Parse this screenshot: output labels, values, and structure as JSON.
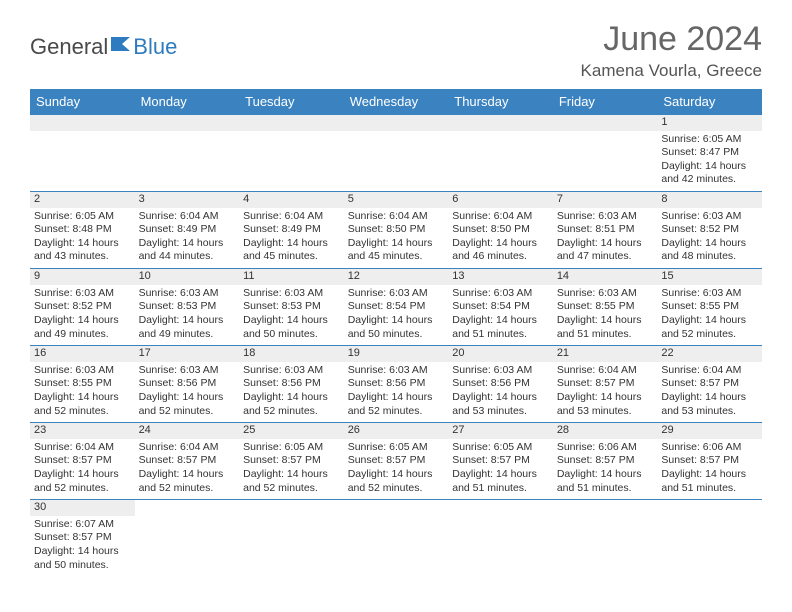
{
  "brand": {
    "part1": "General",
    "part2": "Blue"
  },
  "title": "June 2024",
  "location": "Kamena Vourla, Greece",
  "colors": {
    "header_bg": "#3b83c0",
    "header_text": "#ffffff",
    "daynum_bg": "#eeeeee",
    "border": "#3b83c0"
  },
  "weekdays": [
    "Sunday",
    "Monday",
    "Tuesday",
    "Wednesday",
    "Thursday",
    "Friday",
    "Saturday"
  ],
  "weeks": [
    [
      null,
      null,
      null,
      null,
      null,
      null,
      {
        "n": "1",
        "sr": "Sunrise: 6:05 AM",
        "ss": "Sunset: 8:47 PM",
        "d1": "Daylight: 14 hours",
        "d2": "and 42 minutes."
      }
    ],
    [
      {
        "n": "2",
        "sr": "Sunrise: 6:05 AM",
        "ss": "Sunset: 8:48 PM",
        "d1": "Daylight: 14 hours",
        "d2": "and 43 minutes."
      },
      {
        "n": "3",
        "sr": "Sunrise: 6:04 AM",
        "ss": "Sunset: 8:49 PM",
        "d1": "Daylight: 14 hours",
        "d2": "and 44 minutes."
      },
      {
        "n": "4",
        "sr": "Sunrise: 6:04 AM",
        "ss": "Sunset: 8:49 PM",
        "d1": "Daylight: 14 hours",
        "d2": "and 45 minutes."
      },
      {
        "n": "5",
        "sr": "Sunrise: 6:04 AM",
        "ss": "Sunset: 8:50 PM",
        "d1": "Daylight: 14 hours",
        "d2": "and 45 minutes."
      },
      {
        "n": "6",
        "sr": "Sunrise: 6:04 AM",
        "ss": "Sunset: 8:50 PM",
        "d1": "Daylight: 14 hours",
        "d2": "and 46 minutes."
      },
      {
        "n": "7",
        "sr": "Sunrise: 6:03 AM",
        "ss": "Sunset: 8:51 PM",
        "d1": "Daylight: 14 hours",
        "d2": "and 47 minutes."
      },
      {
        "n": "8",
        "sr": "Sunrise: 6:03 AM",
        "ss": "Sunset: 8:52 PM",
        "d1": "Daylight: 14 hours",
        "d2": "and 48 minutes."
      }
    ],
    [
      {
        "n": "9",
        "sr": "Sunrise: 6:03 AM",
        "ss": "Sunset: 8:52 PM",
        "d1": "Daylight: 14 hours",
        "d2": "and 49 minutes."
      },
      {
        "n": "10",
        "sr": "Sunrise: 6:03 AM",
        "ss": "Sunset: 8:53 PM",
        "d1": "Daylight: 14 hours",
        "d2": "and 49 minutes."
      },
      {
        "n": "11",
        "sr": "Sunrise: 6:03 AM",
        "ss": "Sunset: 8:53 PM",
        "d1": "Daylight: 14 hours",
        "d2": "and 50 minutes."
      },
      {
        "n": "12",
        "sr": "Sunrise: 6:03 AM",
        "ss": "Sunset: 8:54 PM",
        "d1": "Daylight: 14 hours",
        "d2": "and 50 minutes."
      },
      {
        "n": "13",
        "sr": "Sunrise: 6:03 AM",
        "ss": "Sunset: 8:54 PM",
        "d1": "Daylight: 14 hours",
        "d2": "and 51 minutes."
      },
      {
        "n": "14",
        "sr": "Sunrise: 6:03 AM",
        "ss": "Sunset: 8:55 PM",
        "d1": "Daylight: 14 hours",
        "d2": "and 51 minutes."
      },
      {
        "n": "15",
        "sr": "Sunrise: 6:03 AM",
        "ss": "Sunset: 8:55 PM",
        "d1": "Daylight: 14 hours",
        "d2": "and 52 minutes."
      }
    ],
    [
      {
        "n": "16",
        "sr": "Sunrise: 6:03 AM",
        "ss": "Sunset: 8:55 PM",
        "d1": "Daylight: 14 hours",
        "d2": "and 52 minutes."
      },
      {
        "n": "17",
        "sr": "Sunrise: 6:03 AM",
        "ss": "Sunset: 8:56 PM",
        "d1": "Daylight: 14 hours",
        "d2": "and 52 minutes."
      },
      {
        "n": "18",
        "sr": "Sunrise: 6:03 AM",
        "ss": "Sunset: 8:56 PM",
        "d1": "Daylight: 14 hours",
        "d2": "and 52 minutes."
      },
      {
        "n": "19",
        "sr": "Sunrise: 6:03 AM",
        "ss": "Sunset: 8:56 PM",
        "d1": "Daylight: 14 hours",
        "d2": "and 52 minutes."
      },
      {
        "n": "20",
        "sr": "Sunrise: 6:03 AM",
        "ss": "Sunset: 8:56 PM",
        "d1": "Daylight: 14 hours",
        "d2": "and 53 minutes."
      },
      {
        "n": "21",
        "sr": "Sunrise: 6:04 AM",
        "ss": "Sunset: 8:57 PM",
        "d1": "Daylight: 14 hours",
        "d2": "and 53 minutes."
      },
      {
        "n": "22",
        "sr": "Sunrise: 6:04 AM",
        "ss": "Sunset: 8:57 PM",
        "d1": "Daylight: 14 hours",
        "d2": "and 53 minutes."
      }
    ],
    [
      {
        "n": "23",
        "sr": "Sunrise: 6:04 AM",
        "ss": "Sunset: 8:57 PM",
        "d1": "Daylight: 14 hours",
        "d2": "and 52 minutes."
      },
      {
        "n": "24",
        "sr": "Sunrise: 6:04 AM",
        "ss": "Sunset: 8:57 PM",
        "d1": "Daylight: 14 hours",
        "d2": "and 52 minutes."
      },
      {
        "n": "25",
        "sr": "Sunrise: 6:05 AM",
        "ss": "Sunset: 8:57 PM",
        "d1": "Daylight: 14 hours",
        "d2": "and 52 minutes."
      },
      {
        "n": "26",
        "sr": "Sunrise: 6:05 AM",
        "ss": "Sunset: 8:57 PM",
        "d1": "Daylight: 14 hours",
        "d2": "and 52 minutes."
      },
      {
        "n": "27",
        "sr": "Sunrise: 6:05 AM",
        "ss": "Sunset: 8:57 PM",
        "d1": "Daylight: 14 hours",
        "d2": "and 51 minutes."
      },
      {
        "n": "28",
        "sr": "Sunrise: 6:06 AM",
        "ss": "Sunset: 8:57 PM",
        "d1": "Daylight: 14 hours",
        "d2": "and 51 minutes."
      },
      {
        "n": "29",
        "sr": "Sunrise: 6:06 AM",
        "ss": "Sunset: 8:57 PM",
        "d1": "Daylight: 14 hours",
        "d2": "and 51 minutes."
      }
    ],
    [
      {
        "n": "30",
        "sr": "Sunrise: 6:07 AM",
        "ss": "Sunset: 8:57 PM",
        "d1": "Daylight: 14 hours",
        "d2": "and 50 minutes."
      },
      null,
      null,
      null,
      null,
      null,
      null
    ]
  ]
}
